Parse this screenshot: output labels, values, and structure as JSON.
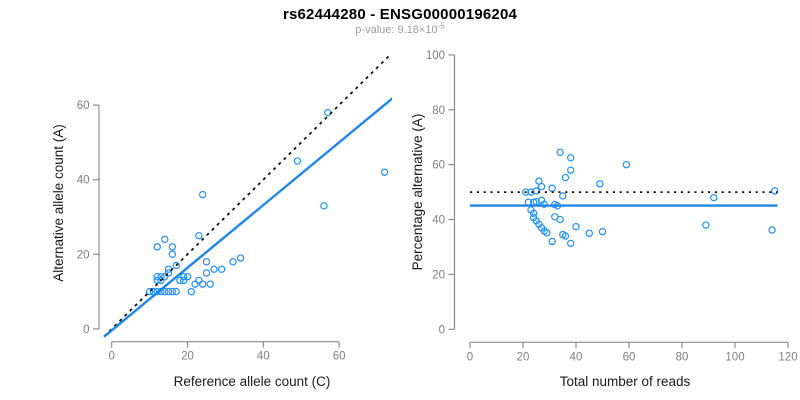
{
  "header": {
    "title": "rs62444280 - ENSG00000196204",
    "subtitle_prefix": "p-value: 9.18×10",
    "subtitle_exponent": "-5"
  },
  "colors": {
    "point": "#1E90FF",
    "fit_line": "#1E86E6",
    "reference_line": "#111111",
    "axis": "#8C8C8C",
    "tick_label": "#808080",
    "axis_label": "#1a1a1a",
    "title": "#000000",
    "subtitle": "#9b9b9b",
    "background": "#FFFFFF"
  },
  "chart_data": [
    {
      "id": "allele-counts-scatter",
      "type": "scatter",
      "xlabel": "Reference allele count (C)",
      "ylabel": "Alternative allele count (A)",
      "xticks": [
        0,
        20,
        40,
        60
      ],
      "yticks": [
        0,
        20,
        40,
        60
      ],
      "xlim": [
        0,
        73.5
      ],
      "ylim": [
        0,
        73
      ],
      "grid": false,
      "legend": "none",
      "points": [
        [
          10,
          10
        ],
        [
          11,
          10
        ],
        [
          12,
          10
        ],
        [
          13,
          10
        ],
        [
          14,
          10
        ],
        [
          15,
          10
        ],
        [
          16,
          10
        ],
        [
          17,
          10
        ],
        [
          21,
          10
        ],
        [
          12,
          13
        ],
        [
          13,
          13
        ],
        [
          12,
          14
        ],
        [
          13,
          14
        ],
        [
          14,
          14
        ],
        [
          15,
          15
        ],
        [
          15,
          16
        ],
        [
          18,
          13
        ],
        [
          19,
          13
        ],
        [
          19,
          14
        ],
        [
          20,
          14
        ],
        [
          22,
          12
        ],
        [
          23,
          13
        ],
        [
          24,
          12
        ],
        [
          26,
          12
        ],
        [
          25,
          15
        ],
        [
          17,
          17
        ],
        [
          27,
          16
        ],
        [
          29,
          16
        ],
        [
          32,
          18
        ],
        [
          34,
          19
        ],
        [
          25,
          18
        ],
        [
          16,
          20
        ],
        [
          12,
          22
        ],
        [
          16,
          22
        ],
        [
          14,
          24
        ],
        [
          23,
          25
        ],
        [
          24,
          36
        ],
        [
          49,
          45
        ],
        [
          56,
          33
        ],
        [
          57,
          58
        ],
        [
          72,
          42
        ]
      ],
      "lines": [
        {
          "name": "identity-line",
          "style": "dashed",
          "slope": 1,
          "intercept": 0,
          "color_key": "reference_line",
          "width": 1.8
        },
        {
          "name": "fit-line",
          "style": "solid",
          "slope": 0.84,
          "intercept": -0.4,
          "color_key": "fit_line",
          "width": 2.4
        }
      ]
    },
    {
      "id": "percentage-scatter",
      "type": "scatter",
      "xlabel": "Total number of reads",
      "ylabel": "Percentage alternative (A)",
      "xticks": [
        0,
        20,
        40,
        60,
        80,
        100,
        120
      ],
      "yticks": [
        0,
        20,
        40,
        60,
        80,
        100
      ],
      "xlim": [
        0,
        120
      ],
      "ylim": [
        0,
        100
      ],
      "grid": false,
      "legend": "none",
      "points": [
        [
          34,
          64.5
        ],
        [
          38,
          62.5
        ],
        [
          38,
          58
        ],
        [
          36,
          55.3
        ],
        [
          59,
          60
        ],
        [
          49,
          53
        ],
        [
          26,
          54
        ],
        [
          27,
          52
        ],
        [
          25,
          50.4
        ],
        [
          21,
          50
        ],
        [
          23,
          50
        ],
        [
          31,
          51.4
        ],
        [
          35,
          48.6
        ],
        [
          115,
          50.4
        ],
        [
          92,
          48
        ],
        [
          22,
          46.3
        ],
        [
          24,
          46.3
        ],
        [
          25,
          46.5
        ],
        [
          27,
          47
        ],
        [
          28,
          45.6
        ],
        [
          32,
          45.5
        ],
        [
          33,
          45
        ],
        [
          23,
          43.5
        ],
        [
          24,
          42.3
        ],
        [
          24,
          40.7
        ],
        [
          25,
          39.5
        ],
        [
          26,
          38.3
        ],
        [
          27,
          37
        ],
        [
          28,
          35.8
        ],
        [
          29,
          35.2
        ],
        [
          32,
          41
        ],
        [
          34,
          40
        ],
        [
          35,
          34.5
        ],
        [
          36,
          34
        ],
        [
          31,
          32
        ],
        [
          38,
          31.3
        ],
        [
          40,
          37.4
        ],
        [
          45,
          35
        ],
        [
          50,
          35.6
        ],
        [
          89,
          38
        ],
        [
          114,
          36.2
        ]
      ],
      "lines": [
        {
          "name": "null-line",
          "style": "dotted",
          "y": 50,
          "x_range": [
            0,
            116
          ],
          "color_key": "reference_line",
          "width": 1.8
        },
        {
          "name": "fit-line",
          "style": "solid",
          "y": 45.1,
          "x_range": [
            0,
            116
          ],
          "color_key": "fit_line",
          "width": 2.4
        }
      ]
    }
  ]
}
